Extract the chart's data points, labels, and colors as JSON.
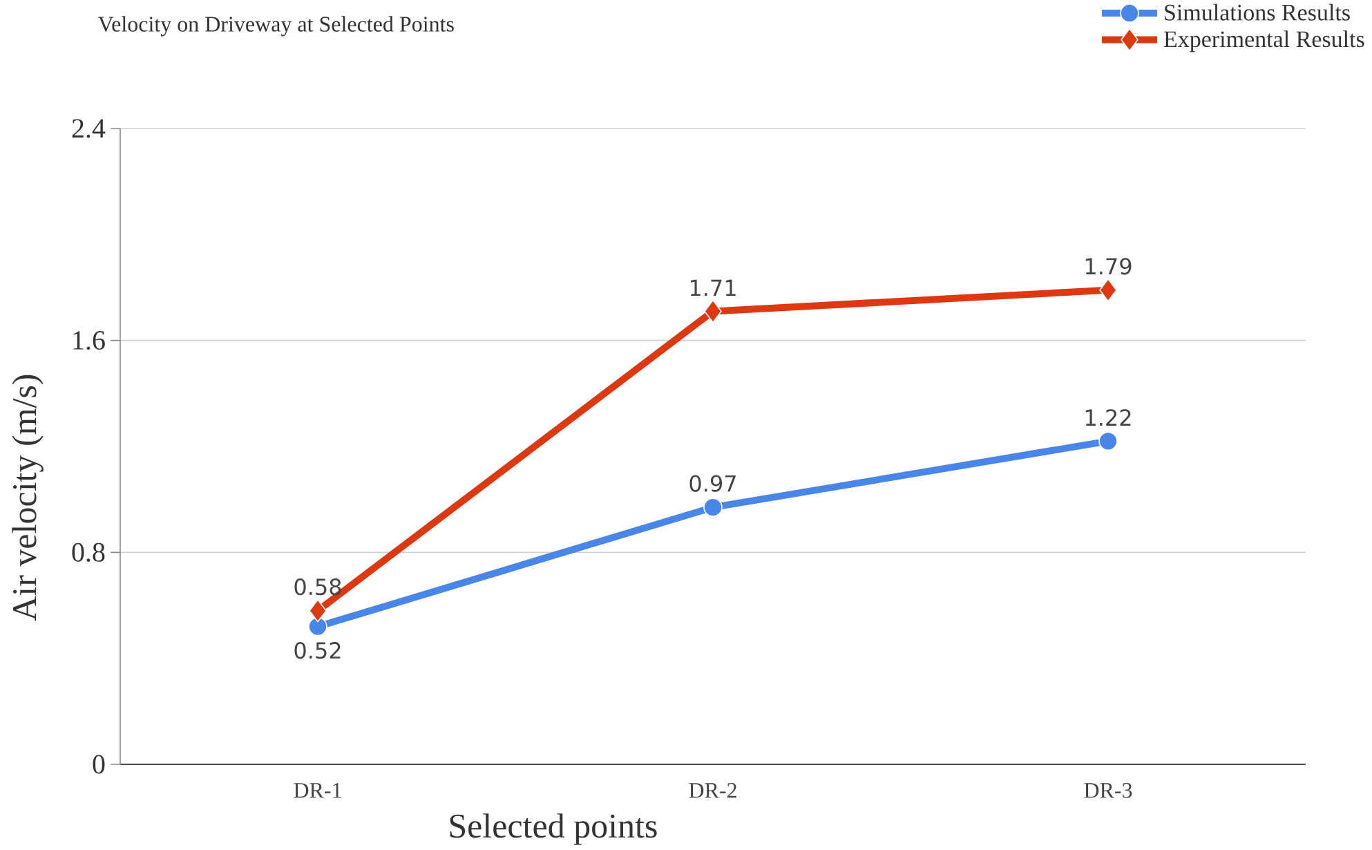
{
  "chart_data": {
    "type": "line",
    "title": "Velocity on Driveway at Selected Points",
    "xlabel": "Selected points",
    "ylabel": "Air velocity (m/s)",
    "categories": [
      "DR-1",
      "DR-2",
      "DR-3"
    ],
    "series": [
      {
        "name": "Simulations Results",
        "color": "#4a86e8",
        "marker": "circle",
        "values": [
          0.52,
          0.97,
          1.22
        ]
      },
      {
        "name": "Experimental Results",
        "color": "#dc3912",
        "marker": "diamond",
        "values": [
          0.58,
          1.71,
          1.79
        ]
      }
    ],
    "ylim": [
      0,
      2.4
    ],
    "yticks": [
      0,
      0.8,
      1.6,
      2.4
    ],
    "grid": "y",
    "legend": "top right",
    "data_labels": true,
    "line_style": "solid"
  }
}
